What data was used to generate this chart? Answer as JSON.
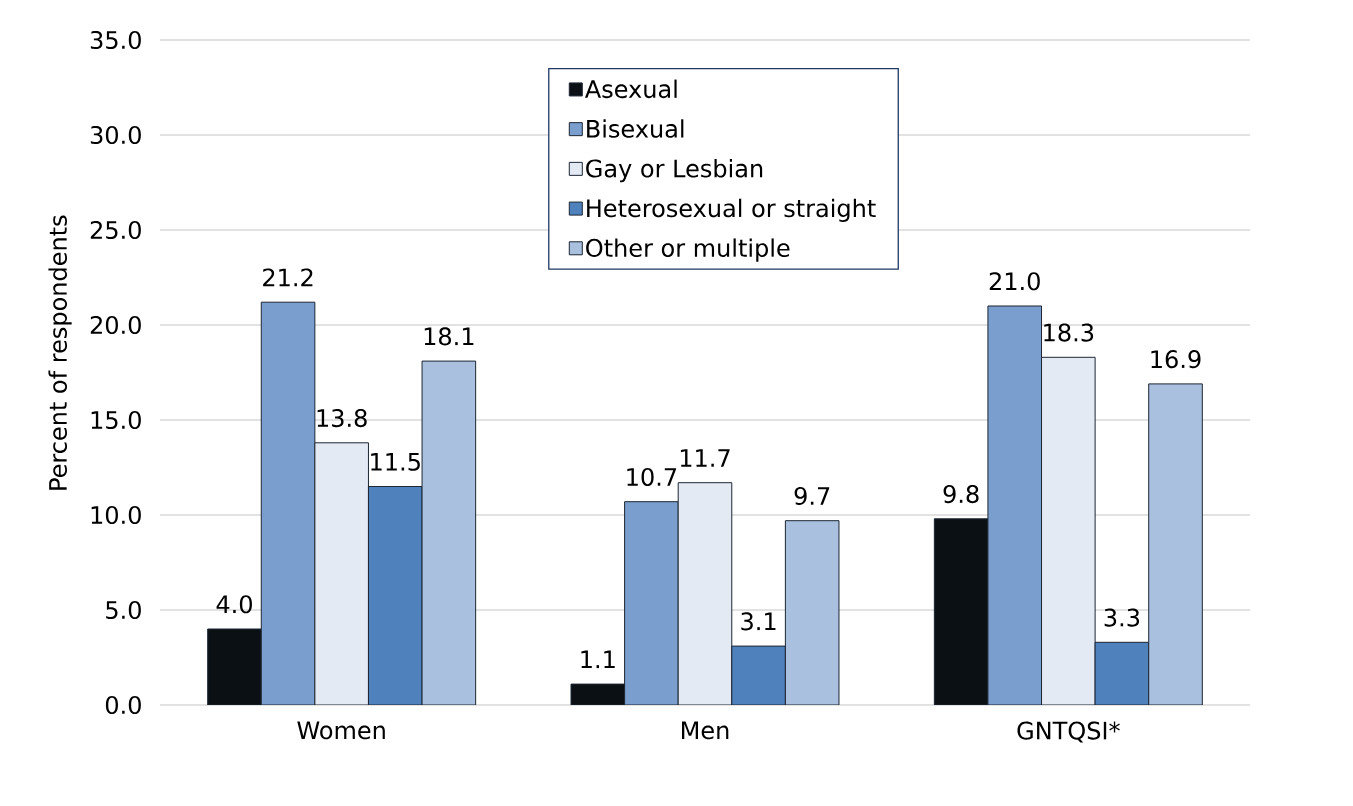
{
  "chart_data": {
    "type": "bar",
    "ylabel": "Percent of respondents",
    "categories": [
      "Women",
      "Men",
      "GNTQSI*"
    ],
    "series": [
      {
        "name": "Asexual",
        "color": "#0b1015",
        "values": [
          4.0,
          1.1,
          9.8
        ],
        "value_labels": [
          "4.0",
          "1.1",
          "9.8"
        ]
      },
      {
        "name": "Bisexual",
        "color": "#7a9ecd",
        "values": [
          21.2,
          10.7,
          21.0
        ],
        "value_labels": [
          "21.2",
          "10.7",
          "21.0"
        ]
      },
      {
        "name": "Gay or Lesbian",
        "color": "#e3eaf4",
        "values": [
          13.8,
          11.7,
          18.3
        ],
        "value_labels": [
          "13.8",
          "11.7",
          "18.3"
        ]
      },
      {
        "name": "Heterosexual or straight",
        "color": "#4f81bd",
        "values": [
          11.5,
          3.1,
          3.3
        ],
        "value_labels": [
          "11.5",
          "3.1",
          "3.3"
        ]
      },
      {
        "name": "Other or multiple",
        "color": "#a9c1df",
        "values": [
          18.1,
          9.7,
          16.9
        ],
        "value_labels": [
          "18.1",
          "9.7",
          "16.9"
        ]
      }
    ],
    "ylim": [
      0,
      35
    ],
    "yticks": [
      {
        "value": 0,
        "label": "0.0"
      },
      {
        "value": 5,
        "label": "5.0"
      },
      {
        "value": 10,
        "label": "10.0"
      },
      {
        "value": 15,
        "label": "15.0"
      },
      {
        "value": 20,
        "label": "20.0"
      },
      {
        "value": 25,
        "label": "25.0"
      },
      {
        "value": 30,
        "label": "30.0"
      },
      {
        "value": 35,
        "label": "35.0"
      }
    ],
    "grid": "y",
    "legend": "top"
  }
}
